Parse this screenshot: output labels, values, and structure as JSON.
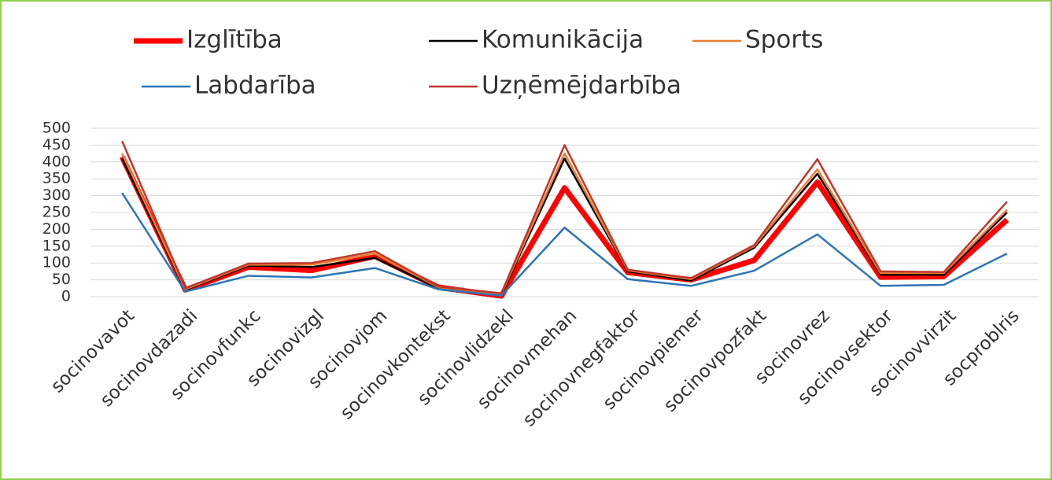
{
  "chart_data": {
    "type": "line",
    "categories": [
      "socinovavot",
      "socinovdazadi",
      "socinovfunkc",
      "socinovizgl",
      "socinovjom",
      "socinovkontekst",
      "socinovlidzekl",
      "socinovmehan",
      "socinovnegfaktor",
      "socinovpiemer",
      "socinovpozfakt",
      "socinovrez",
      "socinovsektor",
      "socinovvirzit",
      "socproblris"
    ],
    "series": [
      {
        "name": "Izglītība",
        "color": "#ff0000",
        "line_width": 7,
        "values": [
          415,
          20,
          88,
          78,
          120,
          28,
          2,
          323,
          72,
          50,
          108,
          340,
          58,
          60,
          228
        ]
      },
      {
        "name": "Komunikācija",
        "color": "#000000",
        "line_width": 2.5,
        "values": [
          410,
          20,
          92,
          88,
          115,
          25,
          5,
          410,
          75,
          48,
          145,
          365,
          65,
          65,
          250
        ]
      },
      {
        "name": "Sports",
        "color": "#ed7d31",
        "line_width": 2.5,
        "values": [
          425,
          22,
          95,
          95,
          128,
          28,
          8,
          425,
          78,
          52,
          150,
          378,
          70,
          70,
          258
        ]
      },
      {
        "name": "Labdarība",
        "color": "#2e75b6",
        "line_width": 2.5,
        "values": [
          308,
          15,
          62,
          57,
          85,
          22,
          3,
          205,
          52,
          32,
          77,
          185,
          32,
          35,
          128
        ]
      },
      {
        "name": "Uzņēmējdarbība",
        "color": "#c0392b",
        "line_width": 2.5,
        "values": [
          462,
          25,
          98,
          100,
          135,
          30,
          10,
          450,
          80,
          55,
          153,
          408,
          75,
          73,
          282
        ]
      }
    ],
    "ylim": [
      0,
      500
    ],
    "yticks": [
      0,
      50,
      100,
      150,
      200,
      250,
      300,
      350,
      400,
      450,
      500
    ],
    "grid": true,
    "legend": "top"
  }
}
